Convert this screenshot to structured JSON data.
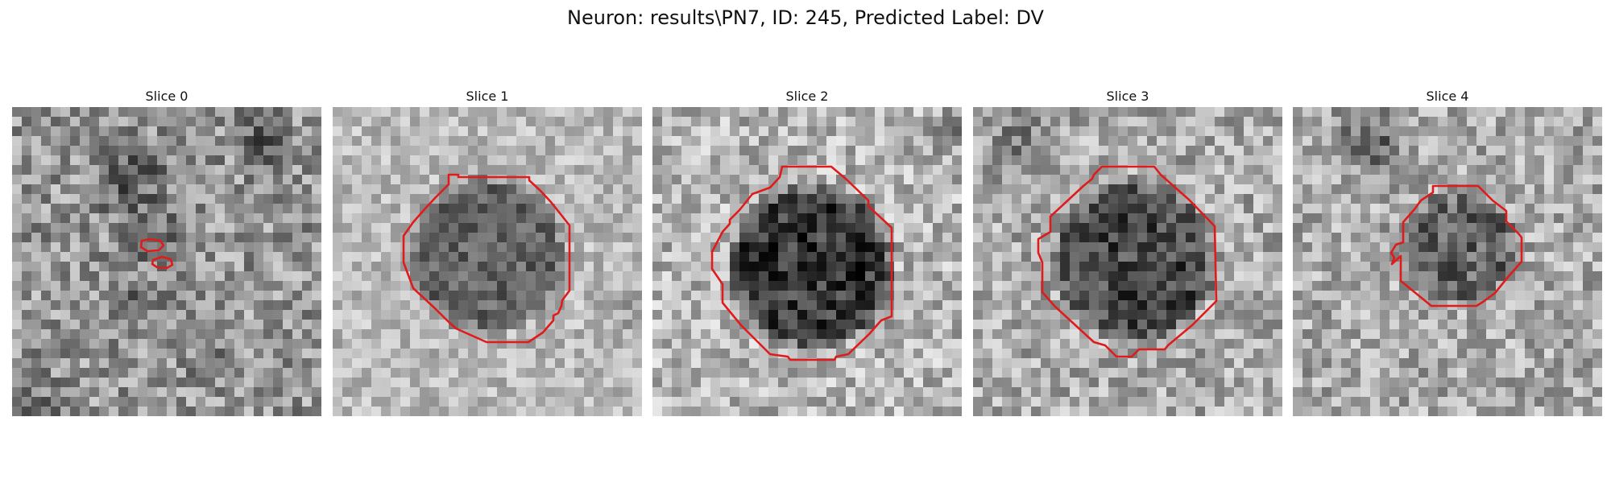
{
  "figure": {
    "title": "Neuron: results\\PN7, ID: 245, Predicted Label: DV"
  },
  "slices": [
    {
      "label": "Slice 0"
    },
    {
      "label": "Slice 1"
    },
    {
      "label": "Slice 2"
    },
    {
      "label": "Slice 3"
    },
    {
      "label": "Slice 4"
    }
  ],
  "colors": {
    "contour": "#e01b1b"
  }
}
